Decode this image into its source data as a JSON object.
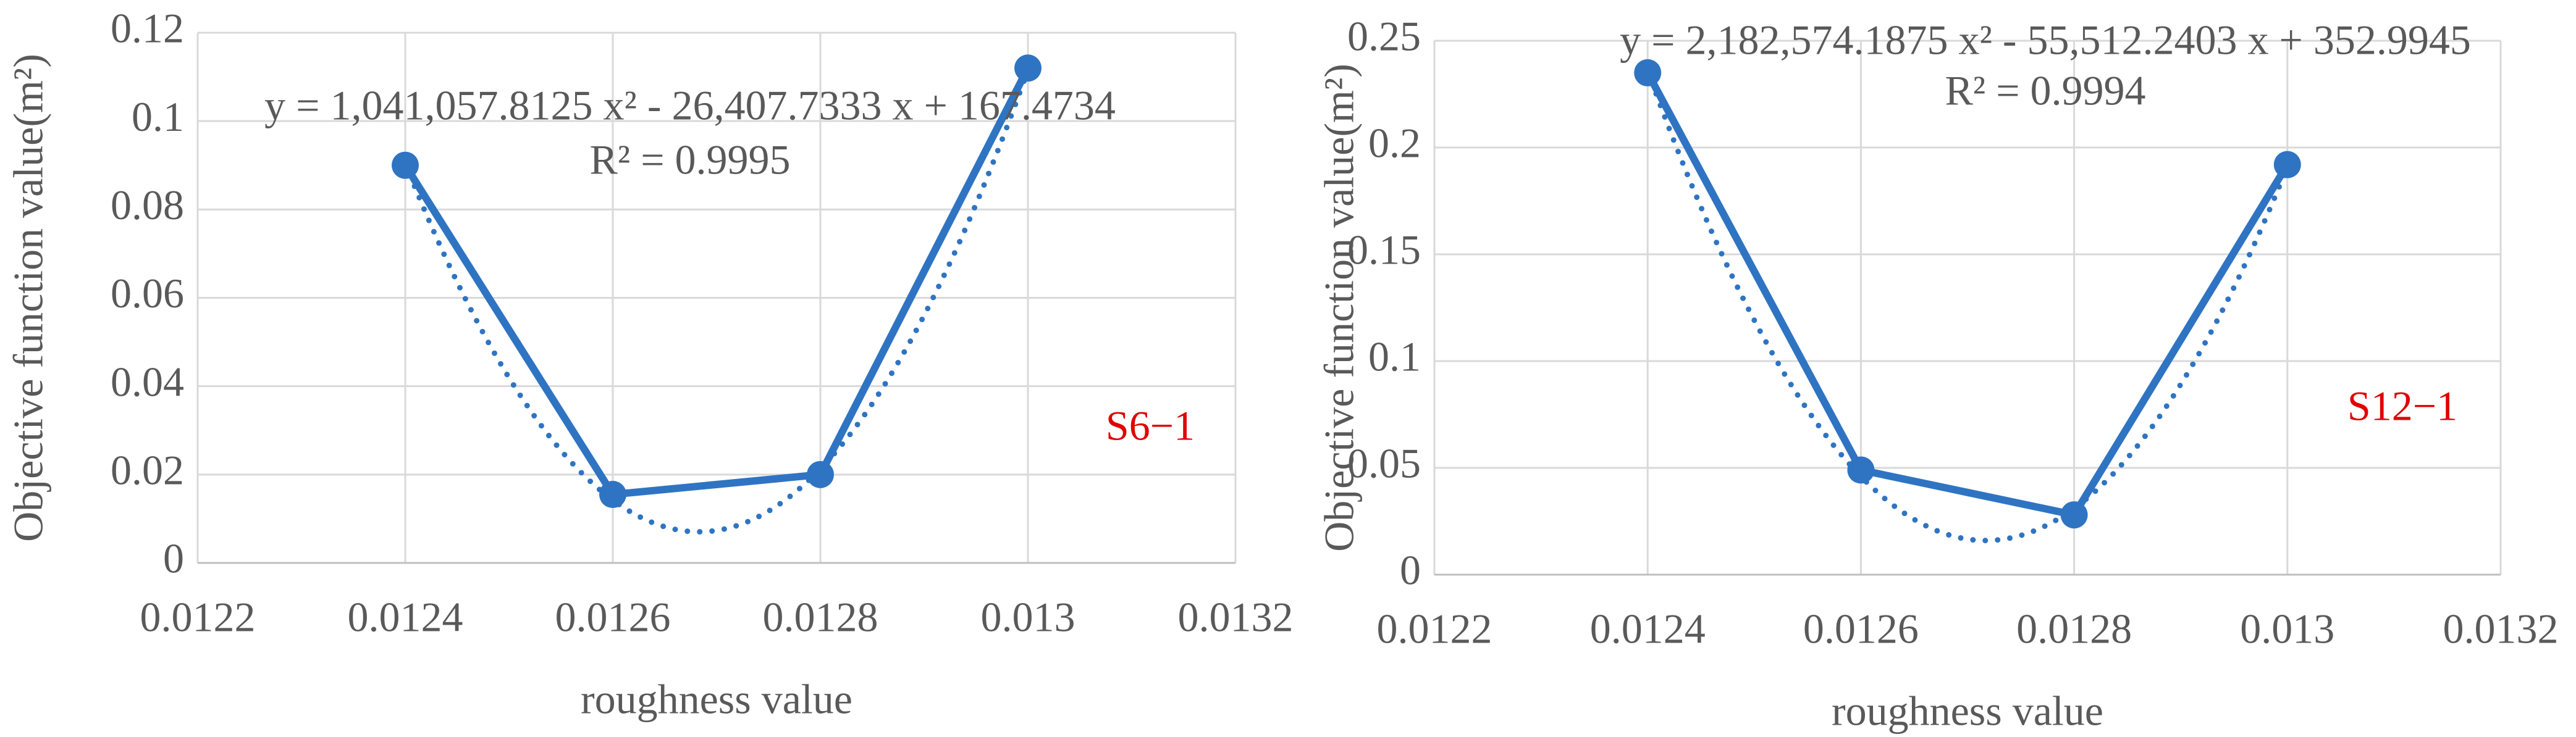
{
  "chart_data": [
    {
      "type": "line",
      "ylabel": "Objective function value(m²)",
      "xlabel": "roughness value",
      "annotations": [
        "y = 1,041,057.8125 x² - 26,407.7333 x + 167.4734",
        "R² = 0.9995",
        "S6−1"
      ],
      "x": [
        0.0124,
        0.0126,
        0.0128,
        0.013
      ],
      "series": [
        {
          "color": "#2f74c2",
          "values": [
            0.09,
            0.0155,
            0.02,
            0.112
          ]
        }
      ],
      "trendline": "polynomial",
      "xlim": [
        0.0122,
        0.0132
      ],
      "xticks": [
        0.0122,
        0.0124,
        0.0126,
        0.0128,
        0.013,
        0.0132
      ],
      "ylim": [
        0,
        0.12
      ],
      "yticks": [
        0,
        0.02,
        0.04,
        0.06,
        0.08,
        0.1,
        0.12
      ],
      "grid": true
    },
    {
      "type": "line",
      "ylabel": "Objective function value(m²)",
      "xlabel": "roughness value",
      "annotations": [
        "y = 2,182,574.1875 x² - 55,512.2403 x + 352.9945",
        "R² = 0.9994",
        "S12−1"
      ],
      "x": [
        0.0124,
        0.0126,
        0.0128,
        0.013
      ],
      "series": [
        {
          "color": "#2f74c2",
          "values": [
            0.235,
            0.049,
            0.028,
            0.192
          ]
        }
      ],
      "trendline": "polynomial",
      "xlim": [
        0.0122,
        0.0132
      ],
      "xticks": [
        0.0122,
        0.0124,
        0.0126,
        0.0128,
        0.013,
        0.0132
      ],
      "ylim": [
        0,
        0.25
      ],
      "yticks": [
        0,
        0.05,
        0.1,
        0.15,
        0.2,
        0.25
      ],
      "grid": true
    }
  ]
}
